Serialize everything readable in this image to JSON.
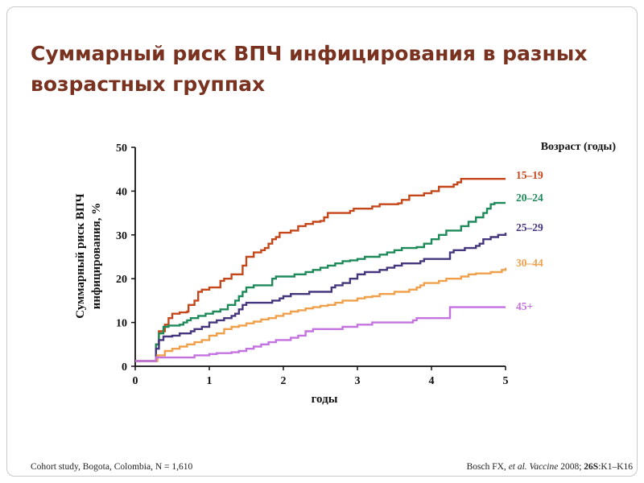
{
  "title_line1": "Суммарный риск ВПЧ инфицирования в разных",
  "title_line2": "возрастных группах",
  "footer_left": "Cohort study, Bogota, Colombia, N = 1,610",
  "footer_right": {
    "authors": "Bosch FX, ",
    "etal": "et al.",
    "journal": " Vaccine",
    "year": " 2008; ",
    "volume": "26S",
    "pages": ":K1–K16"
  },
  "chart_data": {
    "type": "line",
    "title": "",
    "xlabel": "годы",
    "ylabel_line1": "Суммарный риск ВПЧ",
    "ylabel_line2": "инфицирования, %",
    "legend_title": "Возраст (годы)",
    "xlim": [
      0,
      5
    ],
    "ylim": [
      0,
      50
    ],
    "x_ticks": [
      "0",
      "1",
      "2",
      "3",
      "4",
      "5"
    ],
    "y_ticks": [
      "0",
      "10",
      "20",
      "30",
      "40",
      "50"
    ],
    "grid": false,
    "legend_position": "right",
    "series": [
      {
        "name": "15–19",
        "color": "#c4461a",
        "points": [
          [
            0,
            1.2
          ],
          [
            0.25,
            1.2
          ],
          [
            0.28,
            5
          ],
          [
            0.32,
            8
          ],
          [
            0.4,
            9.5
          ],
          [
            0.45,
            11
          ],
          [
            0.5,
            12
          ],
          [
            0.6,
            12.3
          ],
          [
            0.7,
            12.5
          ],
          [
            0.72,
            14
          ],
          [
            0.8,
            15
          ],
          [
            0.85,
            17
          ],
          [
            0.9,
            17.5
          ],
          [
            1.0,
            18
          ],
          [
            1.1,
            18
          ],
          [
            1.15,
            19.5
          ],
          [
            1.2,
            20
          ],
          [
            1.3,
            21
          ],
          [
            1.4,
            21
          ],
          [
            1.45,
            23
          ],
          [
            1.5,
            25
          ],
          [
            1.6,
            26
          ],
          [
            1.7,
            26.5
          ],
          [
            1.75,
            27
          ],
          [
            1.8,
            28
          ],
          [
            1.85,
            29
          ],
          [
            1.9,
            29.5
          ],
          [
            1.95,
            30.5
          ],
          [
            2.1,
            31
          ],
          [
            2.2,
            32
          ],
          [
            2.3,
            32.5
          ],
          [
            2.4,
            33
          ],
          [
            2.5,
            33.2
          ],
          [
            2.55,
            34
          ],
          [
            2.6,
            35
          ],
          [
            2.8,
            35
          ],
          [
            2.9,
            35.5
          ],
          [
            2.95,
            36
          ],
          [
            3.2,
            36.5
          ],
          [
            3.3,
            37
          ],
          [
            3.55,
            37.2
          ],
          [
            3.6,
            38
          ],
          [
            3.7,
            39
          ],
          [
            3.9,
            39.5
          ],
          [
            4.0,
            40
          ],
          [
            4.1,
            41
          ],
          [
            4.3,
            41.5
          ],
          [
            4.35,
            42
          ],
          [
            4.4,
            42.8
          ],
          [
            4.6,
            42.8
          ],
          [
            5.0,
            42.8
          ]
        ]
      },
      {
        "name": "20–24",
        "color": "#1e8a5a",
        "points": [
          [
            0,
            1.2
          ],
          [
            0.25,
            1.2
          ],
          [
            0.28,
            5
          ],
          [
            0.32,
            7.5
          ],
          [
            0.38,
            9
          ],
          [
            0.45,
            9.3
          ],
          [
            0.55,
            9.3
          ],
          [
            0.6,
            9.5
          ],
          [
            0.65,
            10
          ],
          [
            0.7,
            10.5
          ],
          [
            0.75,
            11
          ],
          [
            0.85,
            11.5
          ],
          [
            0.95,
            12
          ],
          [
            1.05,
            12.5
          ],
          [
            1.15,
            13
          ],
          [
            1.25,
            14
          ],
          [
            1.35,
            15
          ],
          [
            1.4,
            16
          ],
          [
            1.45,
            17
          ],
          [
            1.5,
            18
          ],
          [
            1.6,
            18.5
          ],
          [
            1.8,
            18.5
          ],
          [
            1.85,
            20
          ],
          [
            1.9,
            20.5
          ],
          [
            2.1,
            20.5
          ],
          [
            2.15,
            21
          ],
          [
            2.3,
            21.5
          ],
          [
            2.4,
            22
          ],
          [
            2.5,
            22.5
          ],
          [
            2.6,
            23
          ],
          [
            2.7,
            23.5
          ],
          [
            2.8,
            24
          ],
          [
            2.9,
            24.2
          ],
          [
            3.0,
            24.5
          ],
          [
            3.1,
            25
          ],
          [
            3.3,
            25.5
          ],
          [
            3.4,
            26
          ],
          [
            3.5,
            26.5
          ],
          [
            3.6,
            27
          ],
          [
            3.8,
            27.2
          ],
          [
            3.9,
            28
          ],
          [
            4.0,
            29
          ],
          [
            4.1,
            30
          ],
          [
            4.2,
            31
          ],
          [
            4.4,
            32
          ],
          [
            4.5,
            33
          ],
          [
            4.6,
            34
          ],
          [
            4.7,
            35
          ],
          [
            4.75,
            36
          ],
          [
            4.8,
            37
          ],
          [
            4.85,
            37.3
          ],
          [
            5.0,
            37.3
          ]
        ]
      },
      {
        "name": "25–29",
        "color": "#46367e",
        "points": [
          [
            0,
            1.2
          ],
          [
            0.25,
            1.2
          ],
          [
            0.28,
            4
          ],
          [
            0.32,
            6
          ],
          [
            0.38,
            6.8
          ],
          [
            0.45,
            6.8
          ],
          [
            0.5,
            7
          ],
          [
            0.6,
            7.5
          ],
          [
            0.7,
            7.5
          ],
          [
            0.75,
            8
          ],
          [
            0.8,
            8.5
          ],
          [
            0.9,
            9
          ],
          [
            1.0,
            10
          ],
          [
            1.1,
            10.5
          ],
          [
            1.2,
            11
          ],
          [
            1.3,
            11.5
          ],
          [
            1.35,
            12
          ],
          [
            1.4,
            13
          ],
          [
            1.45,
            14
          ],
          [
            1.5,
            14.5
          ],
          [
            1.8,
            14.5
          ],
          [
            1.85,
            15
          ],
          [
            1.95,
            15.5
          ],
          [
            2.0,
            16
          ],
          [
            2.1,
            16.5
          ],
          [
            2.3,
            16.5
          ],
          [
            2.35,
            17
          ],
          [
            2.6,
            17
          ],
          [
            2.65,
            18
          ],
          [
            2.7,
            18.5
          ],
          [
            2.8,
            19
          ],
          [
            2.9,
            20
          ],
          [
            3.0,
            21
          ],
          [
            3.1,
            21.5
          ],
          [
            3.3,
            22
          ],
          [
            3.4,
            22.5
          ],
          [
            3.5,
            23
          ],
          [
            3.6,
            23.5
          ],
          [
            3.85,
            24
          ],
          [
            3.9,
            24.5
          ],
          [
            4.2,
            24.5
          ],
          [
            4.25,
            26
          ],
          [
            4.3,
            26.5
          ],
          [
            4.45,
            27
          ],
          [
            4.6,
            27.5
          ],
          [
            4.65,
            28
          ],
          [
            4.7,
            29
          ],
          [
            4.75,
            29
          ],
          [
            4.8,
            29.5
          ],
          [
            4.9,
            30
          ],
          [
            5.0,
            30.5
          ]
        ]
      },
      {
        "name": "30–44",
        "color": "#f0a04b",
        "points": [
          [
            0,
            1.2
          ],
          [
            0.25,
            1.2
          ],
          [
            0.3,
            2.5
          ],
          [
            0.4,
            3.5
          ],
          [
            0.5,
            4
          ],
          [
            0.6,
            4.5
          ],
          [
            0.7,
            5
          ],
          [
            0.8,
            5.5
          ],
          [
            0.9,
            6
          ],
          [
            1.0,
            7
          ],
          [
            1.1,
            7.5
          ],
          [
            1.2,
            8.5
          ],
          [
            1.3,
            9
          ],
          [
            1.4,
            9.3
          ],
          [
            1.5,
            9.8
          ],
          [
            1.6,
            10.2
          ],
          [
            1.7,
            10.7
          ],
          [
            1.8,
            11
          ],
          [
            1.9,
            11.5
          ],
          [
            2.0,
            12
          ],
          [
            2.1,
            12.5
          ],
          [
            2.2,
            12.8
          ],
          [
            2.3,
            13.2
          ],
          [
            2.4,
            13.5
          ],
          [
            2.5,
            13.8
          ],
          [
            2.6,
            14
          ],
          [
            2.7,
            14.5
          ],
          [
            2.8,
            15
          ],
          [
            2.9,
            15
          ],
          [
            3.0,
            15.5
          ],
          [
            3.1,
            15.8
          ],
          [
            3.2,
            16
          ],
          [
            3.3,
            16.5
          ],
          [
            3.4,
            16.5
          ],
          [
            3.5,
            17
          ],
          [
            3.6,
            17
          ],
          [
            3.7,
            17.5
          ],
          [
            3.8,
            18
          ],
          [
            3.85,
            18.5
          ],
          [
            3.9,
            19
          ],
          [
            4.0,
            19
          ],
          [
            4.1,
            19.5
          ],
          [
            4.2,
            20
          ],
          [
            4.4,
            20.5
          ],
          [
            4.5,
            21
          ],
          [
            4.6,
            21.2
          ],
          [
            4.8,
            21.5
          ],
          [
            4.9,
            21.5
          ],
          [
            4.95,
            22
          ],
          [
            5.0,
            22.5
          ]
        ]
      },
      {
        "name": "45+",
        "color": "#c472e0",
        "points": [
          [
            0,
            1.2
          ],
          [
            0.25,
            1.2
          ],
          [
            0.28,
            2
          ],
          [
            0.5,
            2
          ],
          [
            0.6,
            2
          ],
          [
            0.7,
            2
          ],
          [
            0.8,
            2.5
          ],
          [
            0.9,
            2.5
          ],
          [
            1.0,
            2.8
          ],
          [
            1.1,
            3
          ],
          [
            1.2,
            3
          ],
          [
            1.3,
            3.2
          ],
          [
            1.4,
            3.5
          ],
          [
            1.5,
            4
          ],
          [
            1.6,
            4.5
          ],
          [
            1.7,
            5
          ],
          [
            1.8,
            5.5
          ],
          [
            1.9,
            6
          ],
          [
            2.0,
            6
          ],
          [
            2.1,
            6.5
          ],
          [
            2.2,
            7
          ],
          [
            2.3,
            8
          ],
          [
            2.4,
            8.5
          ],
          [
            2.6,
            8.5
          ],
          [
            2.8,
            9
          ],
          [
            3.0,
            9.5
          ],
          [
            3.2,
            10
          ],
          [
            3.4,
            10
          ],
          [
            3.6,
            10
          ],
          [
            3.75,
            10.5
          ],
          [
            3.8,
            11
          ],
          [
            4.0,
            11
          ],
          [
            4.2,
            11
          ],
          [
            4.25,
            13.5
          ],
          [
            4.4,
            13.5
          ],
          [
            5.0,
            13.5
          ]
        ]
      }
    ]
  }
}
